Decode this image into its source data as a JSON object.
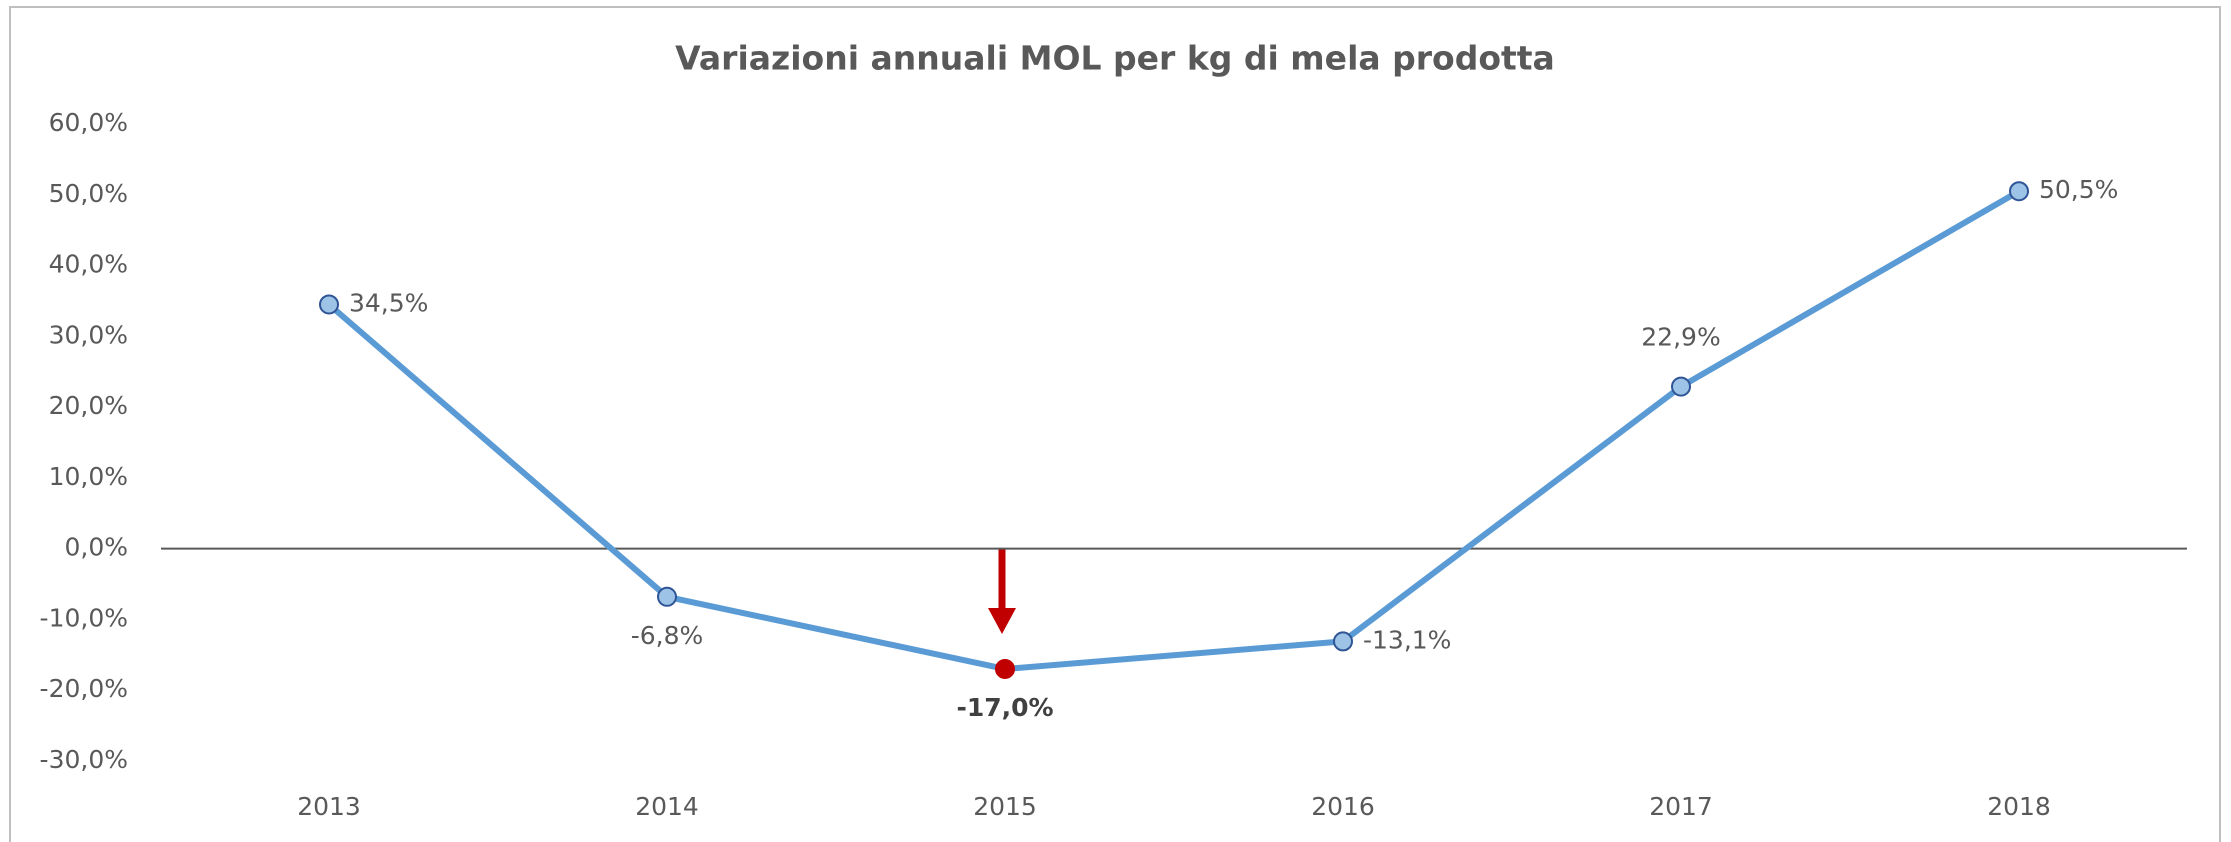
{
  "chart_data": {
    "type": "line",
    "title": "Variazioni annuali MOL per kg di mela prodotta",
    "categories": [
      "2013",
      "2014",
      "2015",
      "2016",
      "2017",
      "2018"
    ],
    "series": [
      {
        "name": "MOL per kg",
        "color": "#5b9bd5",
        "values": [
          34.5,
          -6.8,
          -17.0,
          -13.1,
          22.9,
          50.5
        ],
        "value_labels": [
          "34,5%",
          "-6,8%",
          "-17,0%",
          "-13,1%",
          "22,9%",
          "50,5%"
        ],
        "marker_colors": [
          "#9dc3e6",
          "#9dc3e6",
          "#c00000",
          "#9dc3e6",
          "#9dc3e6",
          "#9dc3e6"
        ],
        "label_positions": [
          "right",
          "below",
          "below",
          "right",
          "above",
          "right"
        ]
      }
    ],
    "ylim": [
      -30,
      60
    ],
    "yticks": [
      {
        "value": -30,
        "label": "-30,0%"
      },
      {
        "value": -20,
        "label": "-20,0%"
      },
      {
        "value": -10,
        "label": "-10,0%"
      },
      {
        "value": 0,
        "label": "0,0%"
      },
      {
        "value": 10,
        "label": "10,0%"
      },
      {
        "value": 20,
        "label": "20,0%"
      },
      {
        "value": 30,
        "label": "30,0%"
      },
      {
        "value": 40,
        "label": "40,0%"
      },
      {
        "value": 50,
        "label": "50,0%"
      },
      {
        "value": 60,
        "label": "60,0%"
      }
    ],
    "grid": false
  }
}
